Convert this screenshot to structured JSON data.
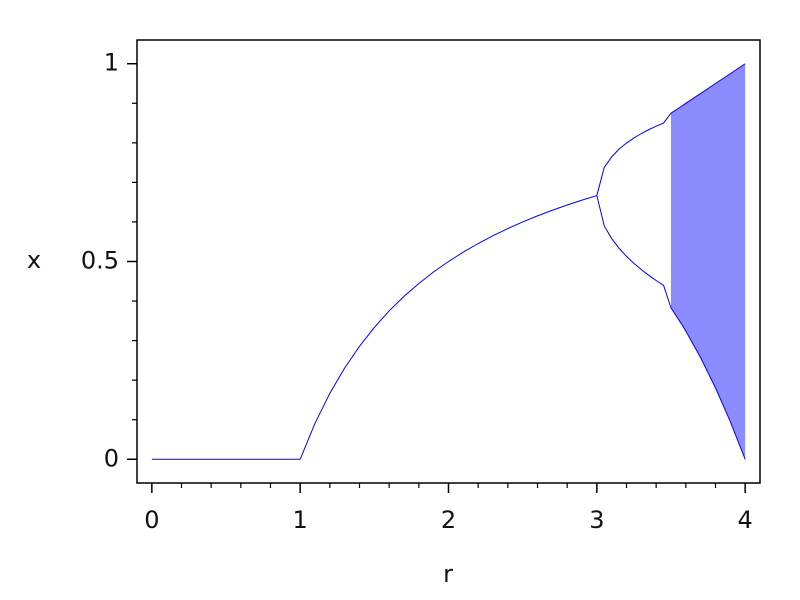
{
  "chart_data": {
    "type": "line",
    "x_label": "r",
    "y_label": "x",
    "xlim": [
      -0.1,
      4.1
    ],
    "ylim": [
      -0.06,
      1.06
    ],
    "xticks": [
      0,
      1,
      2,
      3,
      4
    ],
    "yticks": [
      0,
      0.5,
      1
    ],
    "xminorticks": [
      0.2,
      0.4,
      0.6,
      0.8,
      1.2,
      1.4,
      1.6,
      1.8,
      2.2,
      2.4,
      2.6,
      2.8,
      3.2,
      3.4,
      3.6,
      3.8
    ],
    "yminorticks": [
      0.1,
      0.2,
      0.3,
      0.4,
      0.6,
      0.7,
      0.8,
      0.9
    ],
    "color": "#0000ff",
    "series": [
      {
        "x": [
          0,
          1
        ],
        "values": [
          0,
          0
        ]
      },
      {
        "x": [
          1,
          1.1,
          1.2,
          1.3,
          1.4,
          1.5,
          1.6,
          1.7,
          1.8,
          1.9,
          2,
          2.1,
          2.2,
          2.3,
          2.4,
          2.5,
          2.6,
          2.7,
          2.8,
          2.9,
          3
        ],
        "values": [
          0,
          0.0909,
          0.1667,
          0.2308,
          0.2857,
          0.3333,
          0.375,
          0.4118,
          0.4444,
          0.4737,
          0.5,
          0.5238,
          0.5455,
          0.5652,
          0.5833,
          0.6,
          0.6154,
          0.6296,
          0.6429,
          0.6552,
          0.6667
        ]
      },
      {
        "x": [
          3,
          3.05,
          3.1,
          3.15,
          3.2,
          3.25,
          3.3,
          3.35,
          3.4,
          3.45,
          3.5
        ],
        "values": [
          0.6667,
          0.7377,
          0.7646,
          0.784,
          0.7995,
          0.8124,
          0.8236,
          0.8334,
          0.8421,
          0.85,
          0.875
        ]
      },
      {
        "x": [
          3,
          3.05,
          3.1,
          3.15,
          3.2,
          3.25,
          3.3,
          3.35,
          3.4,
          3.45,
          3.5
        ],
        "values": [
          0.6667,
          0.5902,
          0.558,
          0.5335,
          0.513,
          0.4953,
          0.4794,
          0.4651,
          0.452,
          0.4398,
          0.3828
        ]
      },
      {
        "x": [
          3.5,
          3.57,
          3.6,
          3.7,
          3.8,
          3.9,
          4
        ],
        "values": [
          0.875,
          0.8925,
          0.9,
          0.925,
          0.95,
          0.975,
          1
        ]
      },
      {
        "x": [
          3.5,
          3.57,
          3.6,
          3.7,
          3.8,
          3.9,
          4
        ],
        "values": [
          0.3828,
          0.3425,
          0.324,
          0.2567,
          0.1805,
          0.0951,
          0
        ]
      }
    ]
  }
}
